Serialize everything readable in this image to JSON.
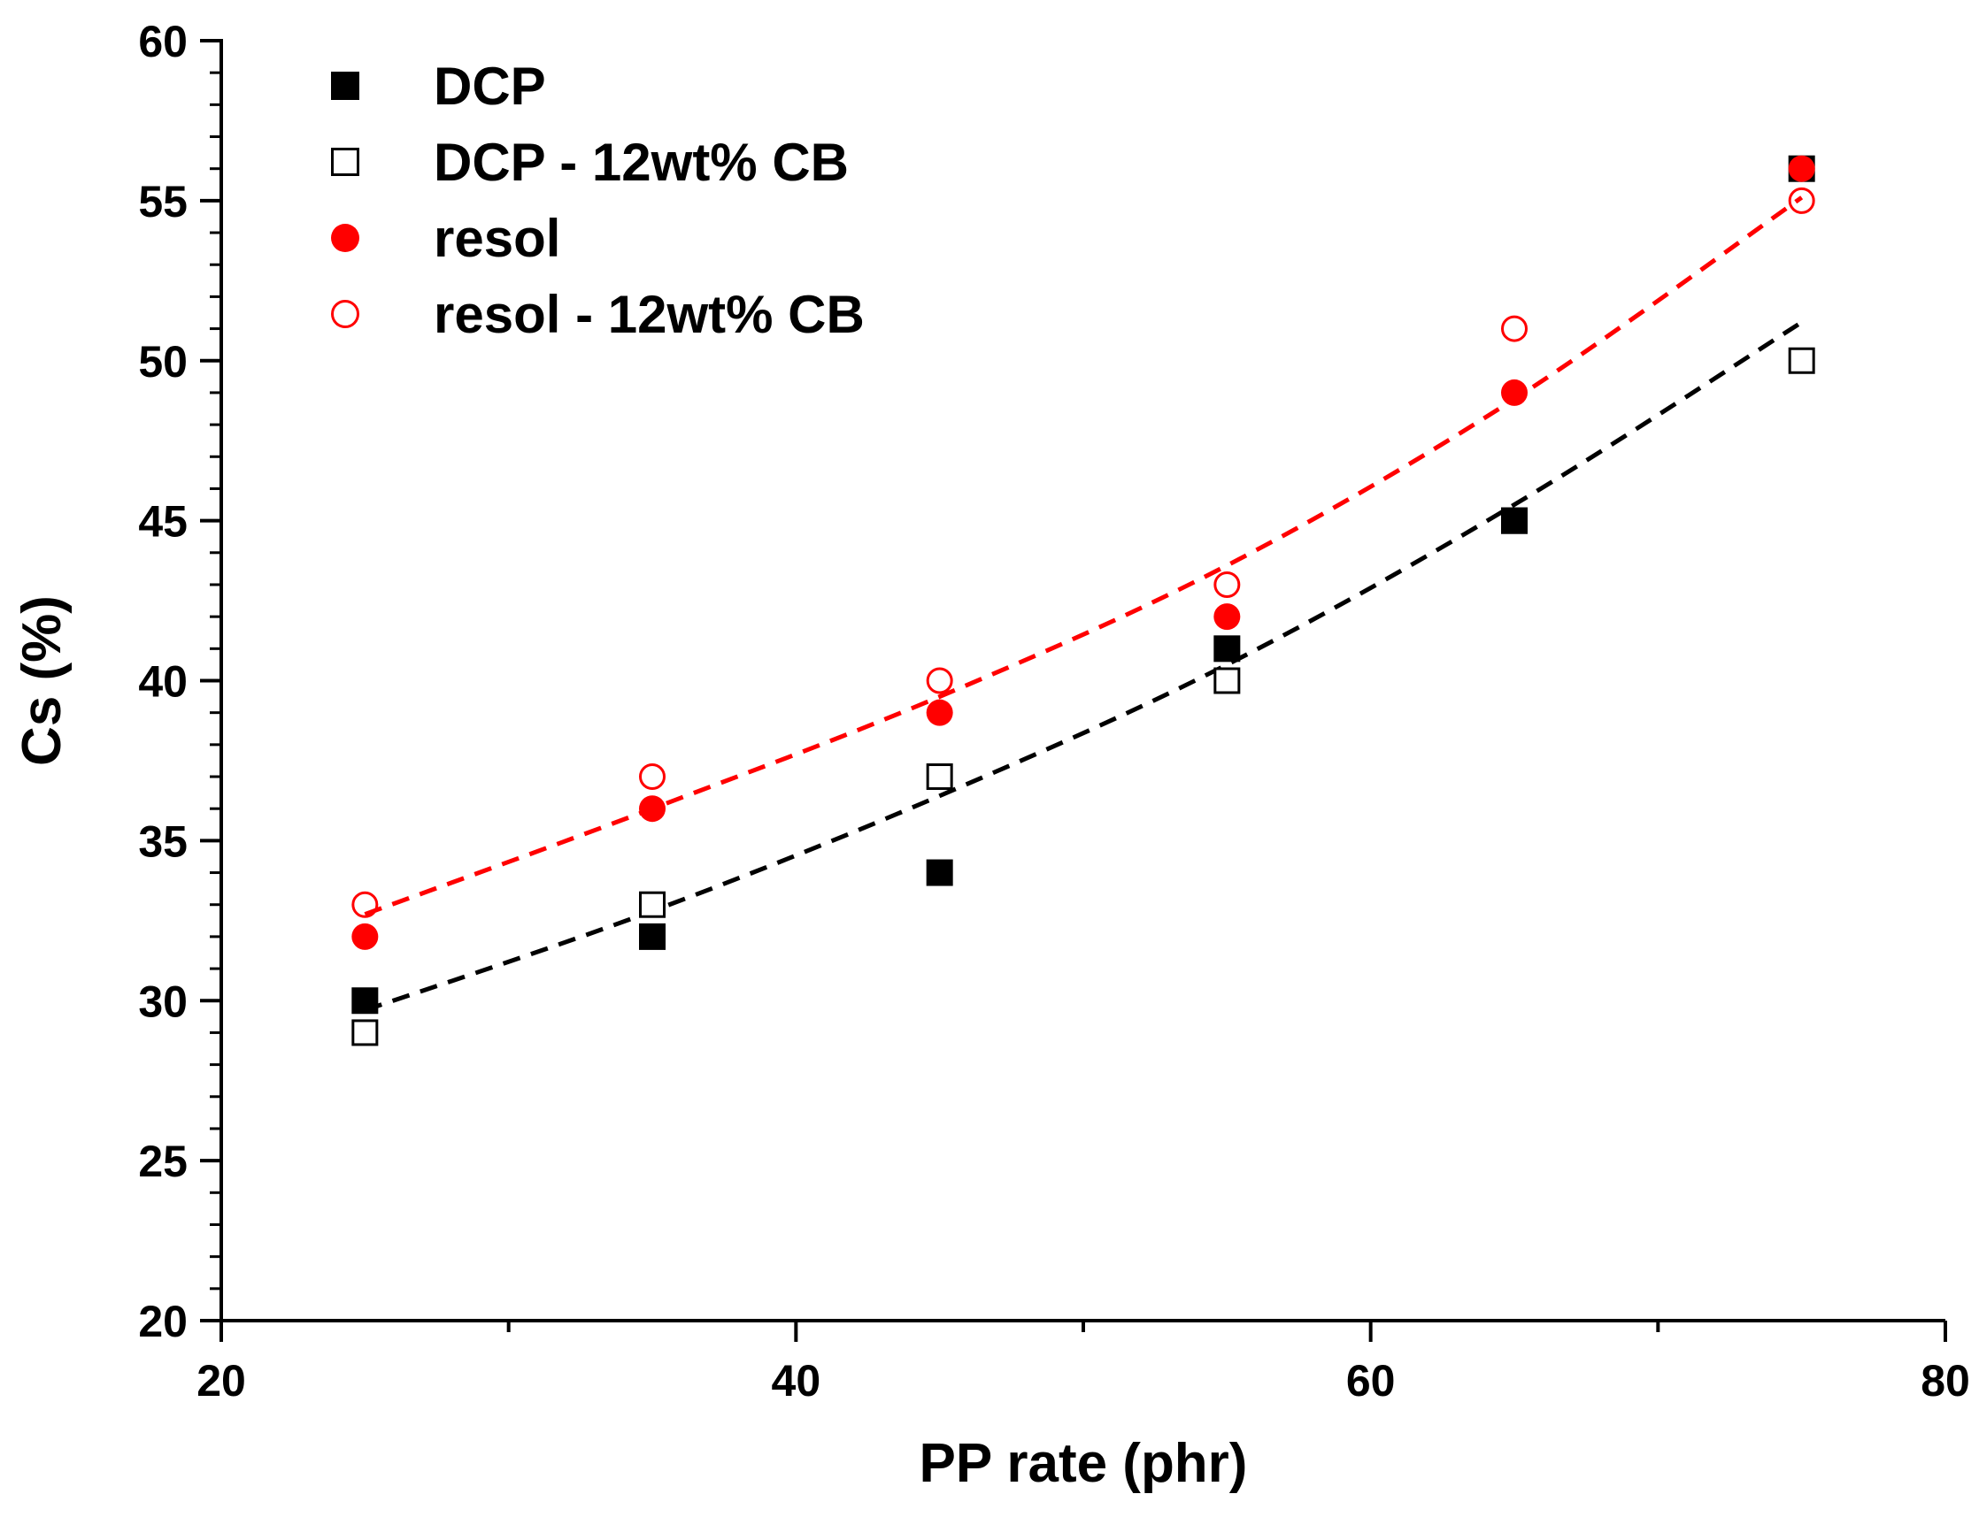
{
  "chart_data": {
    "type": "scatter",
    "title": "",
    "xlabel": "PP rate (phr)",
    "ylabel": "Cs (%)",
    "xlim": [
      20,
      80
    ],
    "ylim": [
      20,
      60
    ],
    "xticks": [
      20,
      40,
      60,
      80
    ],
    "yticks": [
      20,
      25,
      30,
      35,
      40,
      45,
      50,
      55,
      60
    ],
    "x_tick_labels": [
      "20",
      "40",
      "60",
      "80"
    ],
    "y_tick_labels": [
      "20",
      "25",
      "30",
      "35",
      "40",
      "45",
      "50",
      "55",
      "60"
    ],
    "legend_position": "top-left",
    "series": [
      {
        "name": "DCP",
        "marker": "square-filled",
        "color": "#000000",
        "x": [
          25,
          35,
          45,
          55,
          65,
          75
        ],
        "y": [
          30,
          32,
          34,
          41,
          45,
          56
        ]
      },
      {
        "name": "DCP - 12wt% CB",
        "marker": "square-open",
        "color": "#000000",
        "x": [
          25,
          35,
          45,
          55,
          65,
          75
        ],
        "y": [
          29,
          33,
          37,
          40,
          45,
          50
        ]
      },
      {
        "name": "resol",
        "marker": "circle-filled",
        "color": "#ff0000",
        "x": [
          25,
          35,
          45,
          55,
          65,
          75
        ],
        "y": [
          32,
          36,
          39,
          42,
          49,
          56
        ]
      },
      {
        "name": "resol - 12wt% CB",
        "marker": "circle-open",
        "color": "#ff0000",
        "x": [
          25,
          35,
          45,
          55,
          65,
          75
        ],
        "y": [
          33,
          37,
          40,
          43,
          51,
          55
        ]
      }
    ],
    "fit_lines": [
      {
        "name": "black-fit",
        "color": "#000000",
        "style": "dashed",
        "x": [
          25,
          35,
          45,
          55,
          65,
          75
        ],
        "y": [
          29.7,
          32.8,
          36.4,
          40.5,
          45.5,
          51.2
        ]
      },
      {
        "name": "red-fit",
        "color": "#ff0000",
        "style": "dashed",
        "x": [
          25,
          35,
          45,
          55,
          65,
          75
        ],
        "y": [
          32.7,
          36.0,
          39.5,
          43.6,
          48.8,
          55.1
        ]
      }
    ]
  }
}
